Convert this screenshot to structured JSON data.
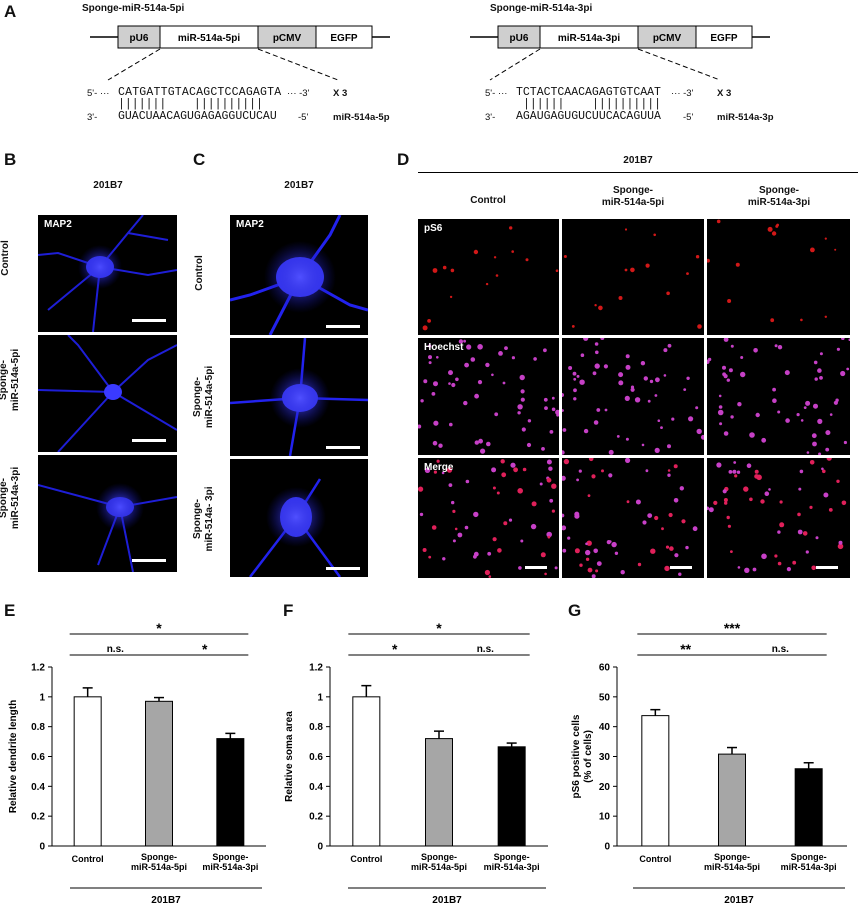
{
  "panels": {
    "A": "A",
    "B": "B",
    "C": "C",
    "D": "D",
    "E": "E",
    "F": "F",
    "G": "G"
  },
  "panel_a": {
    "left": {
      "title": "Sponge-miR-514a-5pi",
      "boxes": [
        "pU6",
        "miR-514a-5pi",
        "pCMV",
        "EGFP"
      ],
      "top_prefix": "5'- ···",
      "top_seq": "CATGATTGTACAGCTCCAGAGTA",
      "top_suffix": "··· -3'",
      "bars": "|||||||    ||||||||||",
      "bottom_prefix": "3'-",
      "bottom_seq": "GUACUAACAGUGAGAGGUCUCAU",
      "bottom_suffix": "-5'",
      "repeat": "X 3",
      "mirna": "miR-514a-5p"
    },
    "right": {
      "title": "Sponge-miR-514a-3pi",
      "boxes": [
        "pU6",
        "miR-514a-3pi",
        "pCMV",
        "EGFP"
      ],
      "top_prefix": "5'- ···",
      "top_seq": "TCTACTCAACAGAGTGTCAAT",
      "top_suffix": "··· -3'",
      "bars": "||||||    ||||||||||",
      "bottom_prefix": "3'-",
      "bottom_seq": "AGAUGAGUGUCUUCACAGUUA",
      "bottom_suffix": "-5'",
      "repeat": "X 3",
      "mirna": "miR-514a-3p"
    }
  },
  "panel_b": {
    "header": "201B7",
    "stain": "MAP2",
    "rows": [
      "Control",
      "Sponge-\nmiR-514a-5pi",
      "Sponge-\nmiR-514a-3pi"
    ]
  },
  "panel_c": {
    "header": "201B7",
    "stain": "MAP2",
    "rows": [
      "Control",
      "Sponge-\nmiR-514a-5pi",
      "Sponge-\nmiR-514a- 3pi"
    ]
  },
  "panel_d": {
    "header": "201B7",
    "columns": [
      "Control",
      "Sponge-\nmiR-514a-5pi",
      "Sponge-\nmiR-514a-3pi"
    ],
    "rows": [
      "pS6",
      "Hoechst",
      "Merge"
    ]
  },
  "chart_data": [
    {
      "type": "bar",
      "panel": "E",
      "categories": [
        "Control",
        "Sponge-\nmiR-514a-5pi",
        "Sponge-\nmiR-514a-3pi"
      ],
      "values": [
        1.0,
        0.97,
        0.72
      ],
      "errors": [
        0.06,
        0.025,
        0.035
      ],
      "colors": [
        "#ffffff",
        "#a6a6a6",
        "#000000"
      ],
      "ylabel": "Relative dendrite length",
      "xlabel": "201B7",
      "ylim": [
        0,
        1.2
      ],
      "yticks": [
        "0",
        "0.2",
        "0.4",
        "0.6",
        "0.8",
        "1",
        "1.2"
      ],
      "significance": [
        {
          "from": 0,
          "to": 2,
          "label": "*",
          "level": 2
        },
        {
          "from": 0,
          "to": 1,
          "label": "n.s.",
          "level": 1
        },
        {
          "from": 1,
          "to": 2,
          "label": "*",
          "level": 1
        }
      ]
    },
    {
      "type": "bar",
      "panel": "F",
      "categories": [
        "Control",
        "Sponge-\nmiR-514a-5pi",
        "Sponge-\nmiR-514a-3pi"
      ],
      "values": [
        1.0,
        0.72,
        0.665
      ],
      "errors": [
        0.075,
        0.05,
        0.025
      ],
      "colors": [
        "#ffffff",
        "#a6a6a6",
        "#000000"
      ],
      "ylabel": "Relative soma area",
      "xlabel": "201B7",
      "ylim": [
        0,
        1.2
      ],
      "yticks": [
        "0",
        "0.2",
        "0.4",
        "0.6",
        "0.8",
        "1",
        "1.2"
      ],
      "significance": [
        {
          "from": 0,
          "to": 2,
          "label": "*",
          "level": 2
        },
        {
          "from": 0,
          "to": 1,
          "label": "*",
          "level": 1
        },
        {
          "from": 1,
          "to": 2,
          "label": "n.s.",
          "level": 1
        }
      ]
    },
    {
      "type": "bar",
      "panel": "G",
      "categories": [
        "Control",
        "Sponge-\nmiR-514a-5pi",
        "Sponge-\nmiR-514a-3pi"
      ],
      "values": [
        43.7,
        30.8,
        25.9
      ],
      "errors": [
        2.0,
        2.2,
        2.0
      ],
      "colors": [
        "#ffffff",
        "#a6a6a6",
        "#000000"
      ],
      "ylabel": "pS6 positive cells\n(% of cells)",
      "xlabel": "201B7",
      "ylim": [
        0,
        60
      ],
      "yticks": [
        "0",
        "10",
        "20",
        "30",
        "40",
        "50",
        "60"
      ],
      "significance": [
        {
          "from": 0,
          "to": 2,
          "label": "***",
          "level": 2
        },
        {
          "from": 0,
          "to": 1,
          "label": "**",
          "level": 1
        },
        {
          "from": 1,
          "to": 2,
          "label": "n.s.",
          "level": 1
        }
      ]
    }
  ]
}
